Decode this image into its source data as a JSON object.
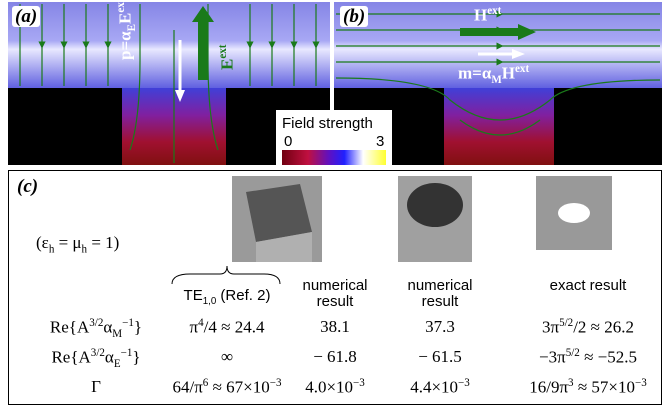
{
  "panels": [
    {
      "label": "(a)",
      "annotations": [
        [
          {
            "t": "p=α"
          },
          {
            "sub": "E"
          },
          {
            "t": "E"
          },
          {
            "sup": "ext"
          }
        ],
        [
          {
            "t": "E"
          },
          {
            "sup": "ext"
          }
        ]
      ]
    },
    {
      "label": "(b)",
      "annotations": [
        [
          {
            "t": "H"
          },
          {
            "sup": "ext"
          }
        ],
        [
          {
            "t": "m=α"
          },
          {
            "sub": "M"
          },
          {
            "t": "H"
          },
          {
            "sup": "ext"
          }
        ]
      ]
    }
  ],
  "colorbar": {
    "label": "Field strength",
    "ticks": [
      0,
      3
    ]
  },
  "table": {
    "label": "(c)",
    "condition": [
      {
        "t": "(ε"
      },
      {
        "sub": "h"
      },
      {
        "t": " = μ"
      },
      {
        "sub": "h"
      },
      {
        "t": " = 1)"
      }
    ],
    "headers": [
      [
        {
          "t": "TE"
        },
        {
          "sub": "1,0"
        },
        {
          "t": " (Ref. 2)"
        }
      ],
      [
        {
          "t": "numerical result"
        }
      ],
      [
        {
          "t": "numerical result"
        }
      ],
      [
        {
          "t": "exact result"
        }
      ]
    ],
    "rows": [
      [
        [
          {
            "t": "Re{A"
          },
          {
            "sup": "3/2"
          },
          {
            "t": "α"
          },
          {
            "sub": "M"
          },
          {
            "sup": "−1"
          },
          {
            "t": "}"
          }
        ],
        [
          {
            "t": "π"
          },
          {
            "sup": "4"
          },
          {
            "t": "/4 ≈ 24.4"
          }
        ],
        [
          {
            "t": "38.1"
          }
        ],
        [
          {
            "t": "37.3"
          }
        ],
        [
          {
            "t": "3π"
          },
          {
            "sup": "5/2"
          },
          {
            "t": "/2 ≈ 26.2"
          }
        ]
      ],
      [
        [
          {
            "t": "Re{A"
          },
          {
            "sup": "3/2"
          },
          {
            "t": "α"
          },
          {
            "sub": "E"
          },
          {
            "sup": "−1"
          },
          {
            "t": "}"
          }
        ],
        [
          {
            "t": "∞"
          }
        ],
        [
          {
            "t": "− 61.8"
          }
        ],
        [
          {
            "t": "− 61.5"
          }
        ],
        [
          {
            "t": "−3π"
          },
          {
            "sup": "5/2"
          },
          {
            "t": " ≈ −52.5"
          }
        ]
      ],
      [
        [
          {
            "t": "Γ"
          }
        ],
        [
          {
            "t": "64/π"
          },
          {
            "sup": "6"
          },
          {
            "t": " ≈ 67×10"
          },
          {
            "sup": "−3"
          }
        ],
        [
          {
            "t": "4.0×10"
          },
          {
            "sup": "−3"
          }
        ],
        [
          {
            "t": "4.4×10"
          },
          {
            "sup": "−3"
          }
        ],
        [
          {
            "t": "16/9π"
          },
          {
            "sup": "3"
          },
          {
            "t": " ≈ 57×10"
          },
          {
            "sup": "−3"
          }
        ]
      ]
    ]
  }
}
